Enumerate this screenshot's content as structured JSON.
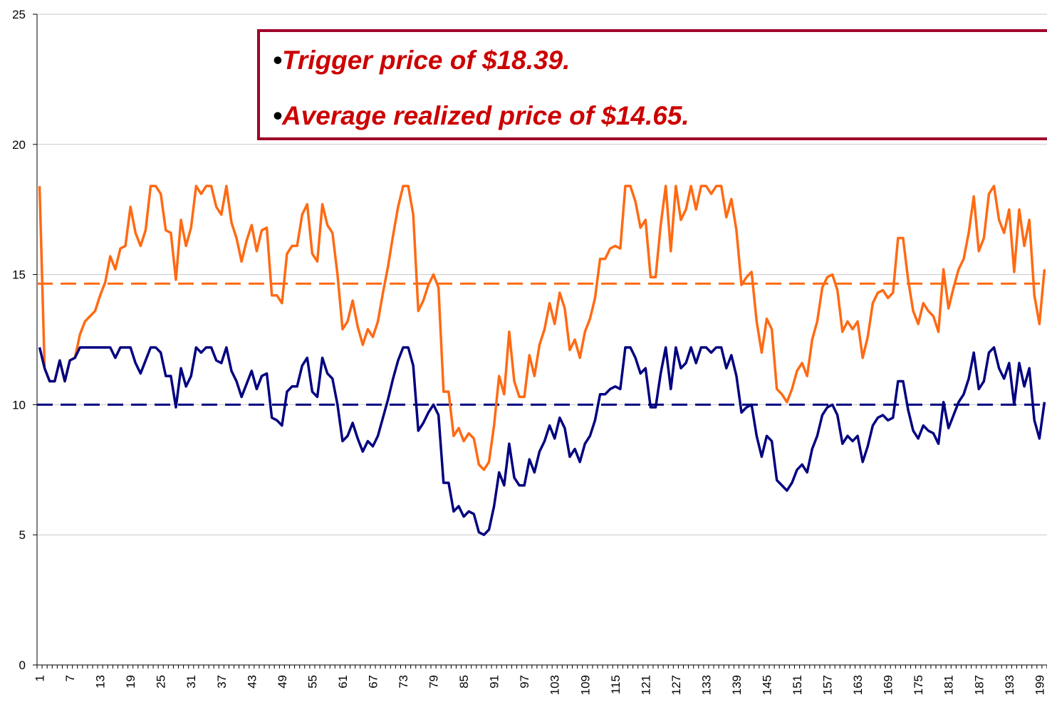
{
  "chart_data": {
    "type": "line",
    "categories": [
      "1",
      null,
      null,
      null,
      null,
      null,
      "7",
      null,
      null,
      null,
      null,
      null,
      "13",
      null,
      null,
      null,
      null,
      null,
      "19",
      null,
      null,
      null,
      null,
      null,
      "25",
      null,
      null,
      null,
      null,
      null,
      "31",
      null,
      null,
      null,
      null,
      null,
      "37",
      null,
      null,
      null,
      null,
      null,
      "43",
      null,
      null,
      null,
      null,
      null,
      "49",
      null,
      null,
      null,
      null,
      null,
      "55",
      null,
      null,
      null,
      null,
      null,
      "61",
      null,
      null,
      null,
      null,
      null,
      "67",
      null,
      null,
      null,
      null,
      null,
      "73",
      null,
      null,
      null,
      null,
      null,
      "79",
      null,
      null,
      null,
      null,
      null,
      "85",
      null,
      null,
      null,
      null,
      null,
      "91",
      null,
      null,
      null,
      null,
      null,
      "97",
      null,
      null,
      null,
      null,
      null,
      "103",
      null,
      null,
      null,
      null,
      null,
      "109",
      null,
      null,
      null,
      null,
      null,
      "115",
      null,
      null,
      null,
      null,
      null,
      "121",
      null,
      null,
      null,
      null,
      null,
      "127",
      null,
      null,
      null,
      null,
      null,
      "133",
      null,
      null,
      null,
      null,
      null,
      "139",
      null,
      null,
      null,
      null,
      null,
      "145",
      null,
      null,
      null,
      null,
      null,
      "151",
      null,
      null,
      null,
      null,
      null,
      "157",
      null,
      null,
      null,
      null,
      null,
      "163",
      null,
      null,
      null,
      null,
      null,
      "169",
      null,
      null,
      null,
      null,
      null,
      "175",
      null,
      null,
      null,
      null,
      null,
      "181",
      null,
      null,
      null,
      null,
      null,
      "187",
      null,
      null,
      null,
      null,
      null,
      "193",
      null,
      null,
      null,
      null,
      null,
      "199",
      null
    ],
    "series": [
      {
        "color": "#ff6a13",
        "values": [
          18.4,
          11.4,
          10.9,
          10.9,
          11.7,
          10.9,
          11.7,
          11.8,
          12.7,
          13.2,
          13.4,
          13.6,
          14.2,
          14.7,
          15.7,
          15.2,
          16.0,
          16.1,
          17.6,
          16.6,
          16.1,
          16.7,
          18.4,
          18.4,
          18.1,
          16.7,
          16.6,
          14.8,
          17.1,
          16.1,
          16.8,
          18.4,
          18.1,
          18.4,
          18.4,
          17.6,
          17.3,
          18.4,
          17.0,
          16.4,
          15.5,
          16.3,
          16.9,
          15.9,
          16.7,
          16.8,
          14.2,
          14.2,
          13.9,
          15.8,
          16.1,
          16.1,
          17.3,
          17.7,
          15.8,
          15.5,
          17.7,
          16.9,
          16.6,
          15.0,
          12.9,
          13.2,
          14.0,
          13.0,
          12.3,
          12.9,
          12.6,
          13.2,
          14.3,
          15.3,
          16.5,
          17.6,
          18.4,
          18.4,
          17.3,
          13.6,
          14.0,
          14.6,
          15.0,
          14.5,
          10.5,
          10.5,
          8.8,
          9.1,
          8.6,
          8.9,
          8.7,
          7.7,
          7.5,
          7.8,
          9.2,
          11.1,
          10.4,
          12.8,
          10.9,
          10.3,
          10.3,
          11.9,
          11.1,
          12.3,
          12.9,
          13.9,
          13.1,
          14.3,
          13.7,
          12.1,
          12.5,
          11.8,
          12.8,
          13.3,
          14.1,
          15.6,
          15.6,
          16.0,
          16.1,
          16.0,
          18.4,
          18.4,
          17.8,
          16.8,
          17.1,
          14.9,
          14.9,
          16.9,
          18.4,
          15.9,
          18.4,
          17.1,
          17.5,
          18.4,
          17.5,
          18.4,
          18.4,
          18.1,
          18.4,
          18.4,
          17.2,
          17.9,
          16.7,
          14.6,
          14.9,
          15.1,
          13.2,
          12.0,
          13.3,
          12.9,
          10.6,
          10.4,
          10.1,
          10.6,
          11.3,
          11.6,
          11.1,
          12.5,
          13.2,
          14.5,
          14.9,
          15.0,
          14.4,
          12.8,
          13.2,
          12.9,
          13.2,
          11.8,
          12.6,
          13.9,
          14.3,
          14.4,
          14.1,
          14.3,
          16.4,
          16.4,
          14.8,
          13.6,
          13.1,
          13.9,
          13.6,
          13.4,
          12.8,
          15.2,
          13.7,
          14.5,
          15.2,
          15.6,
          16.6,
          18.0,
          15.9,
          16.4,
          18.1,
          18.4,
          17.1,
          16.6,
          17.5,
          15.1,
          17.5,
          16.1,
          17.1,
          14.2,
          13.1,
          15.2
        ]
      },
      {
        "color": "#000080",
        "values": [
          12.2,
          11.4,
          10.9,
          10.9,
          11.7,
          10.9,
          11.7,
          11.8,
          12.2,
          12.2,
          12.2,
          12.2,
          12.2,
          12.2,
          12.2,
          11.8,
          12.2,
          12.2,
          12.2,
          11.6,
          11.2,
          11.7,
          12.2,
          12.2,
          12.0,
          11.1,
          11.1,
          9.9,
          11.4,
          10.7,
          11.1,
          12.2,
          12.0,
          12.2,
          12.2,
          11.7,
          11.6,
          12.2,
          11.3,
          10.9,
          10.3,
          10.8,
          11.3,
          10.6,
          11.1,
          11.2,
          9.5,
          9.4,
          9.2,
          10.5,
          10.7,
          10.7,
          11.5,
          11.8,
          10.5,
          10.3,
          11.8,
          11.2,
          11.0,
          10.0,
          8.6,
          8.8,
          9.3,
          8.7,
          8.2,
          8.6,
          8.4,
          8.8,
          9.5,
          10.2,
          11.0,
          11.7,
          12.2,
          12.2,
          11.5,
          9.0,
          9.3,
          9.7,
          10.0,
          9.6,
          7.0,
          7.0,
          5.9,
          6.1,
          5.7,
          5.9,
          5.8,
          5.1,
          5.0,
          5.2,
          6.1,
          7.4,
          6.9,
          8.5,
          7.2,
          6.9,
          6.9,
          7.9,
          7.4,
          8.2,
          8.6,
          9.2,
          8.7,
          9.5,
          9.1,
          8.0,
          8.3,
          7.8,
          8.5,
          8.8,
          9.4,
          10.4,
          10.4,
          10.6,
          10.7,
          10.6,
          12.2,
          12.2,
          11.8,
          11.2,
          11.4,
          9.9,
          9.9,
          11.2,
          12.2,
          10.6,
          12.2,
          11.4,
          11.6,
          12.2,
          11.6,
          12.2,
          12.2,
          12.0,
          12.2,
          12.2,
          11.4,
          11.9,
          11.1,
          9.7,
          9.9,
          10.0,
          8.8,
          8.0,
          8.8,
          8.6,
          7.1,
          6.9,
          6.7,
          7.0,
          7.5,
          7.7,
          7.4,
          8.3,
          8.8,
          9.6,
          9.9,
          10.0,
          9.6,
          8.5,
          8.8,
          8.6,
          8.8,
          7.8,
          8.4,
          9.2,
          9.5,
          9.6,
          9.4,
          9.5,
          10.9,
          10.9,
          9.8,
          9.0,
          8.7,
          9.2,
          9.0,
          8.9,
          8.5,
          10.1,
          9.1,
          9.6,
          10.1,
          10.4,
          11.0,
          12.0,
          10.6,
          10.9,
          12.0,
          12.2,
          11.4,
          11.0,
          11.6,
          10.0,
          11.6,
          10.7,
          11.4,
          9.4,
          8.7,
          10.1
        ]
      }
    ],
    "reference_lines": [
      {
        "value": 14.65,
        "color": "#ff6a13"
      },
      {
        "value": 10,
        "color": "#000080"
      }
    ],
    "annotations": [
      {
        "bullet": "•",
        "text": "Trigger price of $18.39."
      },
      {
        "bullet": "•",
        "text": "Average realized price of $14.65."
      }
    ],
    "annotation_color": "#cc0000",
    "annotation_border": "#a0002a",
    "ylim": [
      0,
      25
    ],
    "yticks": [
      0,
      5,
      10,
      15,
      20,
      25
    ],
    "grid": true
  }
}
